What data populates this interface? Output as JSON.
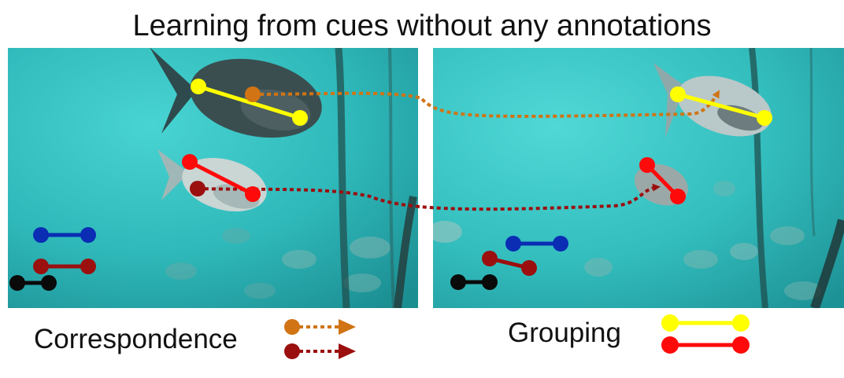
{
  "title": "Learning from cues without any annotations",
  "legend": {
    "correspondence": "Correspondence",
    "grouping": "Grouping"
  },
  "colors": {
    "water": "#37c4c4",
    "water_dark": "#1f8f95",
    "yellow": "#ffff00",
    "red": "#ff0a0a",
    "dark_red": "#9b0f0f",
    "orange": "#d07414",
    "blue": "#0a2db4",
    "black": "#0a0a0a"
  },
  "icons": {
    "left_photo": "underwater-fish-photo",
    "right_photo": "underwater-fish-photo"
  }
}
